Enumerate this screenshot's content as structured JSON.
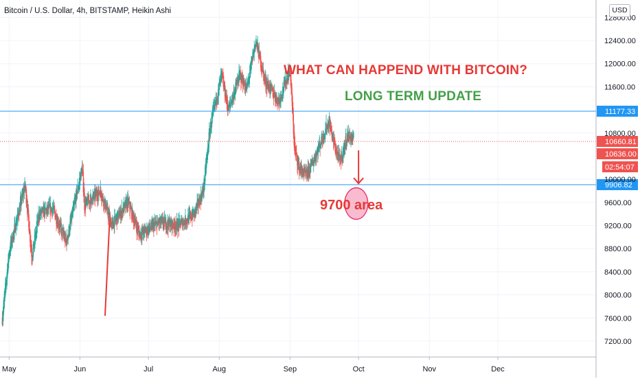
{
  "chart_data": {
    "type": "candlestick",
    "title": "Bitcoin / U.S. Dollar, 4h, BITSTAMP, Heikin Ashi",
    "currency": "USD",
    "y_axis": {
      "ticks": [
        7200,
        7600,
        8000,
        8400,
        8800,
        9200,
        9600,
        10000,
        10800,
        11600,
        12000,
        12400,
        12800
      ],
      "tick_labels": [
        "7200.00",
        "7600.00",
        "8000.00",
        "8400.00",
        "8800.00",
        "9200.00",
        "9600.00",
        "10000.00",
        "10800.00",
        "11600.00",
        "12000.00",
        "12400.00",
        "12800.00"
      ],
      "ylim": [
        6950,
        12950
      ]
    },
    "x_axis": {
      "tick_labels": [
        "May",
        "Jun",
        "Jul",
        "Aug",
        "Sep",
        "Oct",
        "Nov",
        "Dec"
      ],
      "tick_dates": [
        "2020-05-01",
        "2020-06-01",
        "2020-07-01",
        "2020-08-01",
        "2020-09-01",
        "2020-10-01",
        "2020-11-01",
        "2020-12-01"
      ],
      "xlim": [
        "2020-04-27",
        "2021-01-13"
      ]
    },
    "price_path": [
      {
        "date": "2020-04-28",
        "price": 7600
      },
      {
        "date": "2020-05-01",
        "price": 8750
      },
      {
        "date": "2020-05-08",
        "price": 9900
      },
      {
        "date": "2020-05-11",
        "price": 8650
      },
      {
        "date": "2020-05-14",
        "price": 9400
      },
      {
        "date": "2020-05-20",
        "price": 9500
      },
      {
        "date": "2020-05-26",
        "price": 8900
      },
      {
        "date": "2020-06-02",
        "price": 10200
      },
      {
        "date": "2020-06-03",
        "price": 9550
      },
      {
        "date": "2020-06-10",
        "price": 9800
      },
      {
        "date": "2020-06-15",
        "price": 9200
      },
      {
        "date": "2020-06-22",
        "price": 9600
      },
      {
        "date": "2020-06-27",
        "price": 9050
      },
      {
        "date": "2020-07-06",
        "price": 9250
      },
      {
        "date": "2020-07-14",
        "price": 9200
      },
      {
        "date": "2020-07-21",
        "price": 9400
      },
      {
        "date": "2020-07-25",
        "price": 9800
      },
      {
        "date": "2020-07-28",
        "price": 10900
      },
      {
        "date": "2020-08-02",
        "price": 11800
      },
      {
        "date": "2020-08-05",
        "price": 11200
      },
      {
        "date": "2020-08-10",
        "price": 11800
      },
      {
        "date": "2020-08-13",
        "price": 11550
      },
      {
        "date": "2020-08-17",
        "price": 12400
      },
      {
        "date": "2020-08-21",
        "price": 11700
      },
      {
        "date": "2020-08-27",
        "price": 11350
      },
      {
        "date": "2020-09-01",
        "price": 11900
      },
      {
        "date": "2020-09-03",
        "price": 10500
      },
      {
        "date": "2020-09-05",
        "price": 10200
      },
      {
        "date": "2020-09-08",
        "price": 10050
      },
      {
        "date": "2020-09-11",
        "price": 10300
      },
      {
        "date": "2020-09-15",
        "price": 10700
      },
      {
        "date": "2020-09-18",
        "price": 11000
      },
      {
        "date": "2020-09-21",
        "price": 10500
      },
      {
        "date": "2020-09-23",
        "price": 10300
      },
      {
        "date": "2020-09-26",
        "price": 10750
      },
      {
        "date": "2020-09-29",
        "price": 10700
      }
    ],
    "horizontal_lines": [
      {
        "value": 11177.33,
        "label": "11177.33",
        "color": "#2196f3"
      },
      {
        "value": 9906.82,
        "label": "9906.82",
        "color": "#2196f3"
      }
    ],
    "price_labels": [
      {
        "label": "10660.81",
        "color": "#ef5350",
        "kind": "last-price"
      },
      {
        "label": "10636.00",
        "color": "#ef5350",
        "kind": "close"
      },
      {
        "label": "02:54:07",
        "color": "#ef5350",
        "kind": "countdown"
      }
    ],
    "drawings": {
      "red_line": {
        "from": {
          "date": "2020-06-12",
          "price": 7640
        },
        "to": {
          "date": "2020-06-14",
          "price": 9300
        },
        "color": "#e53935"
      },
      "down_arrow": {
        "from": {
          "date": "2020-10-01",
          "price": 10500
        },
        "to": {
          "date": "2020-10-01",
          "price": 9940
        },
        "color": "#e53935"
      },
      "target_circle": {
        "date": "2020-09-30",
        "price": 9580,
        "color": "#e91e63",
        "fill": "#f8bbd0"
      }
    },
    "colors": {
      "up": "#26a69a",
      "down": "#ef5350",
      "grid": "#f0f3fa",
      "axis_text": "#131722"
    }
  },
  "annotations": {
    "question": "WHAT CAN HAPPEND WITH BITCOIN?",
    "update": "LONG TERM UPDATE",
    "target": "9700 area"
  }
}
